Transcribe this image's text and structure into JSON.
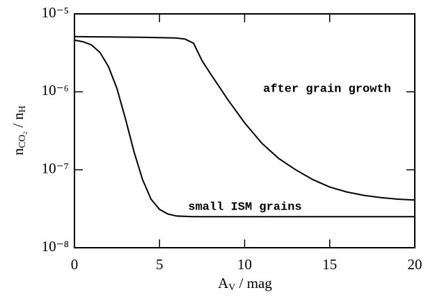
{
  "chart_data": {
    "type": "line",
    "xlabel": [
      "A",
      "V",
      " / mag"
    ],
    "ylabel": [
      "n",
      "CO₂",
      " / n",
      "H"
    ],
    "xlim": [
      0,
      20
    ],
    "xticks": [
      0,
      5,
      10,
      15,
      20
    ],
    "ylim": [
      1e-08,
      1e-05
    ],
    "yticks": [
      {
        "value": 1e-08,
        "label": "10⁻⁸"
      },
      {
        "value": 1e-07,
        "label": "10⁻⁷"
      },
      {
        "value": 1e-06,
        "label": "10⁻⁶"
      },
      {
        "value": 1e-05,
        "label": "10⁻⁵"
      }
    ],
    "yscale": "log",
    "color": "#000",
    "series": [
      {
        "name": "after grain growth",
        "x": [
          0,
          2,
          4,
          6,
          6.5,
          7,
          7.5,
          8,
          9,
          10,
          11,
          12,
          13,
          14,
          15,
          16,
          17,
          18,
          19,
          20
        ],
        "values": [
          5.1e-06,
          5.05e-06,
          5e-06,
          4.9e-06,
          4.75e-06,
          4.2e-06,
          2.5e-06,
          1.7e-06,
          8e-07,
          4e-07,
          2.2e-07,
          1.4e-07,
          1e-07,
          7.5e-08,
          6e-08,
          5.2e-08,
          4.7e-08,
          4.4e-08,
          4.2e-08,
          4.1e-08
        ]
      },
      {
        "name": "small ISM grains",
        "x": [
          0,
          0.5,
          1,
          1.5,
          2,
          2.5,
          3,
          3.5,
          4,
          4.5,
          5,
          5.5,
          6,
          7,
          10,
          20
        ],
        "values": [
          4.6e-06,
          4.4e-06,
          4e-06,
          3.2e-06,
          2.1e-06,
          1.1e-06,
          4.5e-07,
          1.7e-07,
          7.5e-08,
          4.2e-08,
          3.1e-08,
          2.7e-08,
          2.55e-08,
          2.5e-08,
          2.5e-08,
          2.5e-08
        ]
      }
    ]
  }
}
